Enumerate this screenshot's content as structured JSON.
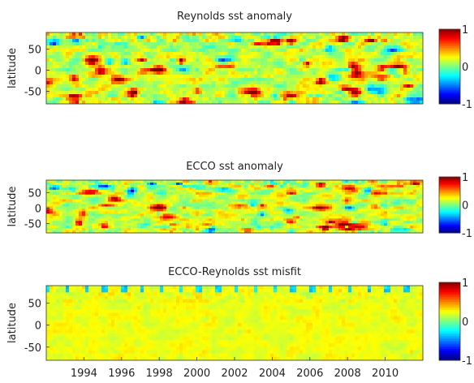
{
  "chart_data": [
    {
      "type": "heatmap",
      "title": "Reynolds sst anomaly",
      "ylabel": "latitude",
      "xlabel": "",
      "xlim": [
        1992.0,
        2012.0
      ],
      "ylim": [
        -80,
        90
      ],
      "yticks": [
        50,
        0,
        -50
      ],
      "xticks": [],
      "colorbar": {
        "min": -1,
        "max": 1,
        "ticks": [
          1,
          0,
          -1
        ]
      },
      "colormap": "jet",
      "pattern": "anomaly",
      "seed": 11,
      "events": [
        {
          "t": 1997.95,
          "lat": 2,
          "value": 1.0,
          "note": "strong warm anomaly"
        },
        {
          "t": 2004.0,
          "lat": 68,
          "value": 0.8
        },
        {
          "t": 2005.0,
          "lat": 68,
          "value": 0.85
        },
        {
          "t": 2007.8,
          "lat": 75,
          "value": 0.9
        },
        {
          "t": 2009.9,
          "lat": 5,
          "value": 0.7
        },
        {
          "t": 2011.2,
          "lat": -38,
          "value": 0.75
        },
        {
          "t": 1992.4,
          "lat": 65,
          "value": -0.9
        },
        {
          "t": 1993.6,
          "lat": 70,
          "value": -0.75
        },
        {
          "t": 1999.3,
          "lat": 0,
          "value": -0.55
        },
        {
          "t": 2008.1,
          "lat": 0,
          "value": -0.55
        }
      ]
    },
    {
      "type": "heatmap",
      "title": "ECCO sst anomaly",
      "ylabel": "latitude",
      "xlabel": "",
      "xlim": [
        1992.0,
        2012.0
      ],
      "ylim": [
        -80,
        90
      ],
      "yticks": [
        50,
        0,
        -50
      ],
      "xticks": [],
      "colorbar": {
        "min": -1,
        "max": 1,
        "ticks": [
          1,
          0,
          -1
        ]
      },
      "colormap": "jet",
      "pattern": "anomaly",
      "seed": 23,
      "events": [
        {
          "t": 1997.95,
          "lat": 2,
          "value": 1.0,
          "note": "strong warm anomaly"
        },
        {
          "t": 2004.0,
          "lat": 70,
          "value": 0.85
        },
        {
          "t": 2006.6,
          "lat": 75,
          "value": 0.9
        },
        {
          "t": 2011.6,
          "lat": 80,
          "value": 0.9
        },
        {
          "t": 2009.5,
          "lat": 5,
          "value": 0.6
        },
        {
          "t": 1992.4,
          "lat": 65,
          "value": -0.85
        },
        {
          "t": 1995.1,
          "lat": 70,
          "value": -0.7
        },
        {
          "t": 2008.1,
          "lat": 0,
          "value": -0.75
        },
        {
          "t": 2000.1,
          "lat": 65,
          "value": -0.55
        }
      ]
    },
    {
      "type": "heatmap",
      "title": "ECCO-Reynolds sst misfit",
      "ylabel": "latitude",
      "xlabel": "",
      "xlim": [
        1992.0,
        2012.0
      ],
      "ylim": [
        -80,
        90
      ],
      "yticks": [
        50,
        0,
        -50
      ],
      "xticks": [
        1994,
        1996,
        1998,
        2000,
        2002,
        2004,
        2006,
        2008,
        2010
      ],
      "colorbar": {
        "min": -1,
        "max": 1,
        "ticks": [
          1,
          0,
          -1
        ]
      },
      "colormap": "jet",
      "pattern": "misfit",
      "seed": 37,
      "events": []
    }
  ]
}
